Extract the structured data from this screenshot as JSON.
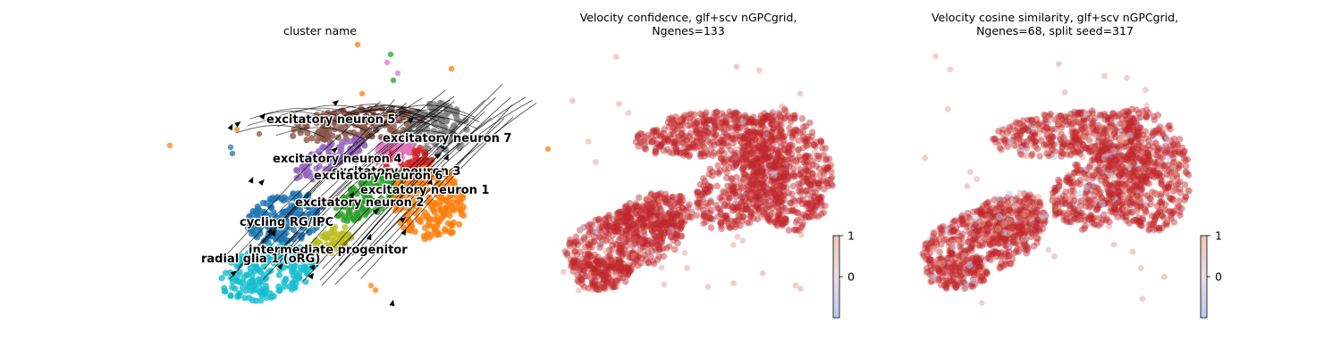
{
  "colors": {
    "cycling_rg_ipc": "#1f77b4",
    "radial_glia_1": "#17becf",
    "intermediate_progenitor": "#bcbd22",
    "excitatory_neuron_1": "#ff7f0e",
    "excitatory_neuron_2": "#2ca02c",
    "excitatory_neuron_3": "#d62728",
    "excitatory_neuron_4": "#9467bd",
    "excitatory_neuron_5": "#8c564b",
    "excitatory_neuron_6": "#e377c2",
    "excitatory_neuron_7": "#7f7f7f",
    "value_high": "#c0282d",
    "value_low": "#b9c9f0"
  },
  "chart_data": [
    {
      "type": "scatter",
      "title": "cluster name",
      "subtype": "umap-embedding-with-velocity-streamlines",
      "axes": "off",
      "legend": "on-data",
      "series": [
        {
          "name": "excitatory neuron 5",
          "color_key": "excitatory_neuron_5"
        },
        {
          "name": "excitatory neuron 7",
          "color_key": "excitatory_neuron_7"
        },
        {
          "name": "excitatory neuron 4",
          "color_key": "excitatory_neuron_4"
        },
        {
          "name": "excitatory neuron 3",
          "color_key": "excitatory_neuron_3"
        },
        {
          "name": "excitatory neuron 6",
          "color_key": "excitatory_neuron_6"
        },
        {
          "name": "excitatory neuron 1",
          "color_key": "excitatory_neuron_1"
        },
        {
          "name": "excitatory neuron 2",
          "color_key": "excitatory_neuron_2"
        },
        {
          "name": "cycling RG/IPC",
          "color_key": "cycling_rg_ipc"
        },
        {
          "name": "intermediate progenitor",
          "color_key": "intermediate_progenitor"
        },
        {
          "name": "radial glia 1 (oRG)",
          "color_key": "radial_glia_1"
        }
      ]
    },
    {
      "type": "scatter",
      "title": "Velocity confidence, glf+scv nGPCgrid,\nNgenes=133",
      "subtype": "umap-embedding-colored-by-value",
      "axes": "off",
      "colorbar": {
        "ticks": [
          1,
          0
        ],
        "cmap": "coolwarm",
        "placement": "bottom-right"
      }
    },
    {
      "type": "scatter",
      "title": "Velocity cosine similarity, glf+scv nGPCgrid,\nNgenes=68, split seed=317",
      "subtype": "umap-embedding-colored-by-value",
      "axes": "off",
      "colorbar": {
        "ticks": [
          1,
          0
        ],
        "cmap": "coolwarm",
        "placement": "bottom-right"
      }
    }
  ]
}
